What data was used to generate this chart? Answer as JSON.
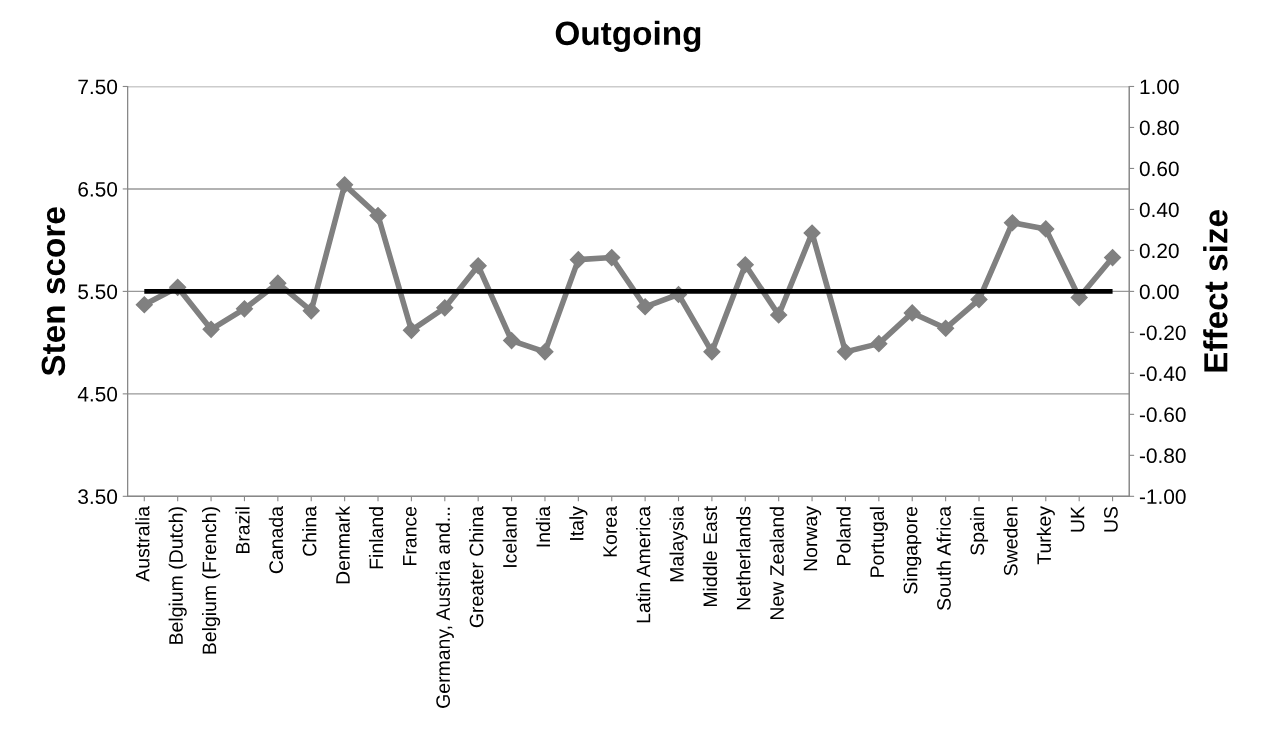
{
  "chart_data": {
    "type": "line",
    "title": "Outgoing",
    "ylabel": "Sten score",
    "y2label": "Effect size",
    "categories": [
      "Australia",
      "Belgium (Dutch)",
      "Belgium (French)",
      "Brazil",
      "Canada",
      "China",
      "Denmark",
      "Finland",
      "France",
      "Germany, Austria and...",
      "Greater China",
      "Iceland",
      "India",
      "Italy",
      "Korea",
      "Latin America",
      "Malaysia",
      "Middle East",
      "Netherlands",
      "New Zealand",
      "Norway",
      "Poland",
      "Portugal",
      "Singapore",
      "South Africa",
      "Spain",
      "Sweden",
      "Turkey",
      "UK",
      "US"
    ],
    "series": [
      {
        "color": "#808080",
        "values": [
          5.37,
          5.54,
          5.13,
          5.33,
          5.58,
          5.31,
          6.54,
          6.24,
          5.12,
          5.34,
          5.75,
          5.02,
          4.91,
          5.81,
          5.83,
          5.35,
          5.47,
          4.91,
          5.76,
          5.27,
          6.07,
          4.91,
          4.99,
          5.29,
          5.14,
          5.42,
          6.17,
          6.11,
          5.44,
          5.83
        ]
      }
    ],
    "ylim": [
      3.5,
      7.5
    ],
    "yticks": [
      {
        "value": 3.5,
        "label": "3.50"
      },
      {
        "value": 4.5,
        "label": "4.50"
      },
      {
        "value": 5.5,
        "label": "5.50"
      },
      {
        "value": 6.5,
        "label": "6.50"
      },
      {
        "value": 7.5,
        "label": "7.50"
      }
    ],
    "y2lim": [
      -1,
      1
    ],
    "y2ticks": [
      {
        "value": -1,
        "label": "-1.00"
      },
      {
        "value": -0.8,
        "label": "-0.80"
      },
      {
        "value": -0.6,
        "label": "-0.60"
      },
      {
        "value": -0.4,
        "label": "-0.40"
      },
      {
        "value": -0.2,
        "label": "-0.20"
      },
      {
        "value": 0,
        "label": "0.00"
      },
      {
        "value": 0.2,
        "label": "0.20"
      },
      {
        "value": 0.4,
        "label": "0.40"
      },
      {
        "value": 0.6,
        "label": "0.60"
      },
      {
        "value": 0.8,
        "label": "0.80"
      },
      {
        "value": 1,
        "label": "1.00"
      }
    ],
    "ref_lines": [
      {
        "axis": "y",
        "value": 5.5,
        "color": "#000000"
      }
    ],
    "grid": "y",
    "marker": "diamond",
    "line_style": "solid"
  }
}
